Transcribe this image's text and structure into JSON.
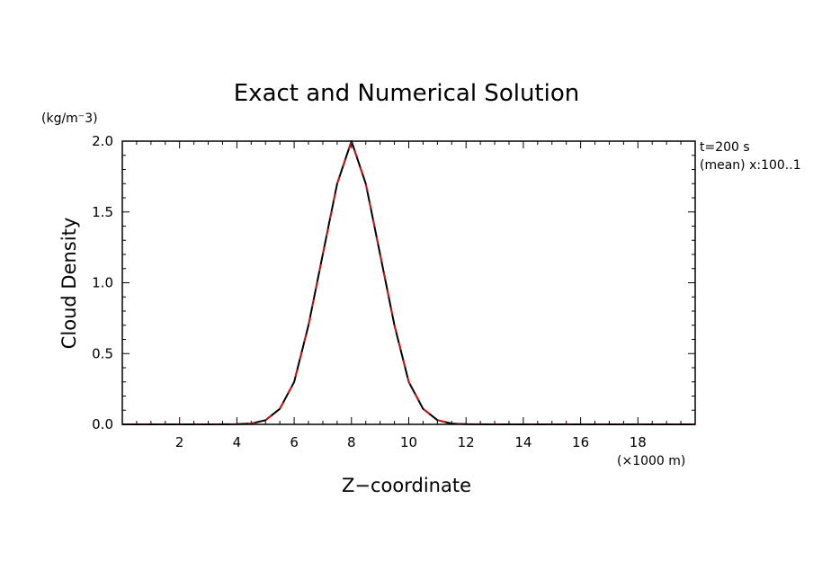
{
  "chart_data": {
    "type": "line",
    "title": "Exact and Numerical Solution",
    "xlabel": "Z−coordinate",
    "x_unit": "(×1000 m)",
    "ylabel": "Cloud Density",
    "y_unit": "(kg/m⁻3)",
    "annotations": [
      "t=200 s",
      "(mean) x:100..1"
    ],
    "xlim": [
      0,
      20
    ],
    "ylim": [
      0,
      2.0
    ],
    "x_ticks": [
      2,
      4,
      6,
      8,
      10,
      12,
      14,
      16,
      18
    ],
    "y_ticks": [
      "0.0",
      "0.5",
      "1.0",
      "1.5",
      "2.0"
    ],
    "grid": false,
    "x": [
      0,
      1,
      2,
      3,
      4,
      4.5,
      5,
      5.5,
      6,
      6.5,
      7,
      7.5,
      8,
      8.5,
      9,
      9.5,
      10,
      10.5,
      11,
      11.5,
      12,
      13,
      14,
      15,
      16,
      17,
      18,
      19,
      20
    ],
    "series": [
      {
        "style": "solid",
        "color": "#000000",
        "values": [
          0,
          0,
          0,
          0,
          0.001,
          0.006,
          0.03,
          0.11,
          0.3,
          0.7,
          1.2,
          1.7,
          2.0,
          1.7,
          1.2,
          0.7,
          0.3,
          0.11,
          0.03,
          0.006,
          0.001,
          0,
          0,
          0,
          0,
          0,
          0,
          0,
          0
        ]
      },
      {
        "style": "dashed",
        "color": "#ff0000",
        "values": [
          0,
          0,
          0,
          0,
          0.001,
          0.006,
          0.03,
          0.11,
          0.3,
          0.7,
          1.2,
          1.7,
          2.0,
          1.7,
          1.2,
          0.7,
          0.3,
          0.11,
          0.03,
          0.006,
          0.001,
          0,
          0,
          0,
          0,
          0,
          0,
          0,
          0
        ]
      }
    ]
  }
}
